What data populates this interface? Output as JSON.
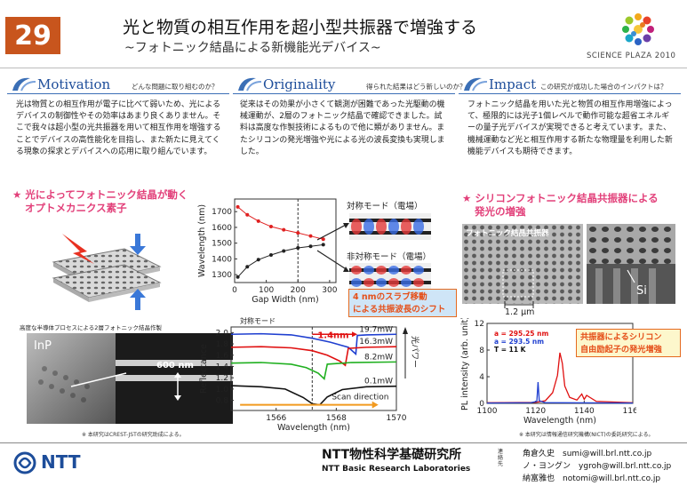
{
  "header": {
    "number": "29",
    "title": "光と物質の相互作用を超小型共振器で増強する",
    "subtitle": "~フォトニック結晶による新機能光デバイス~",
    "logo_text": "SCIENCE PLAZA 2010"
  },
  "sections": [
    {
      "name": "Motivation",
      "question": "どんな問題に取り組むのか？",
      "body": "光は物質との相互作用が電子に比べて弱いため、光によるデバイスの制御性やその効率はあまり良くありません。そこで我々は超小型の光共振器を用いて相互作用を増強することでデバイスの高性能化を目指し、また新たに見えてくる現象の探求とデバイスへの応用に取り組んでいます。"
    },
    {
      "name": "Originality",
      "question": "得られた結果はどう新しいのか？",
      "body": "従来はその効果が小さくて観測が困難であった光駆動の機械運動が、2層のフォトニック結晶で確認できました。試料は高度な作製技術によるもので他に類がありません。またシリコンの発光増強や光による光の波長変換も実現しました。"
    },
    {
      "name": "Impact",
      "question": "この研究が成功した場合のインパクトは？",
      "body": "フォトニック結晶を用いた光と物質の相互作用増強によって、極限的には光子1個レベルで動作可能な超省エネルギーの量子光デバイスが実現できると考えています。また、機械運動など光と相互作用する新たな物理量を利用した新機能デバイスも期待できます。"
    }
  ],
  "left_feature": {
    "title_line1": "★ 光によってフォトニック結晶が動く",
    "title_line2": "オプトメカニクス素子",
    "fab_caption": "高度な半導体プロセスによる2層フォトニック結晶作製",
    "inp_label": "InP",
    "gap_label": "600 nm",
    "note": "※ 本研究はCREST-JSTの研究助成による。"
  },
  "chart_wavelength": {
    "mode_sym": "対称モード（電場）",
    "mode_asym": "非対称モード（電場）",
    "callout_line1": "4 nmのスラブ移動",
    "callout_line2": "による共振波長のシフト"
  },
  "chart_reflectance": {
    "top_label": "対称モード",
    "shift_label": "1.4nm",
    "power_label": "光パワー",
    "scan_label": "Scan direction"
  },
  "right_feature": {
    "title_line1": "★ シリコンフォトニック結晶共振器による",
    "title_line2": "発光の増強",
    "sem_label": "フォトニック結晶共振器",
    "si_label": "Si",
    "scale_label": "1.2 μm",
    "legend_a1": "a = 295.25 nm",
    "legend_a2": "a = 293.5 nm",
    "legend_t": "T = 11 K",
    "callout_line1": "共振器によるシリコン",
    "callout_line2": "自由励起子の発光増強",
    "note": "※ 本研究は情報通信研究機構(NICT)の委託研究による。"
  },
  "footer": {
    "company": "NTT",
    "lab_ja": "NTT物性科学基礎研究所",
    "lab_en": "NTT Basic Research Laboratories",
    "contact_label": "連絡先",
    "contacts": [
      {
        "name": "角倉久史",
        "email": "sumi@will.brl.ntt.co.jp"
      },
      {
        "name": "ノ・ヨングン",
        "email": "ygroh@will.brl.ntt.co.jp"
      },
      {
        "name": "納富雅也",
        "email": "notomi@will.brl.ntt.co.jp"
      }
    ]
  },
  "chart_data": [
    {
      "type": "line",
      "xlabel": "Gap Width (nm)",
      "ylabel": "Wavelength (nm)",
      "xlim": [
        0,
        320
      ],
      "ylim": [
        1250,
        1780
      ],
      "xticks": [
        0,
        100,
        200,
        300
      ],
      "yticks": [
        1300,
        1400,
        1500,
        1600,
        1700
      ],
      "series": [
        {
          "name": "対称モード（電場）",
          "color": "#e02020",
          "x": [
            10,
            40,
            75,
            115,
            155,
            200,
            240,
            280
          ],
          "y": [
            1730,
            1680,
            1640,
            1605,
            1585,
            1565,
            1545,
            1525
          ]
        },
        {
          "name": "非対称モード（電場）",
          "color": "#222222",
          "x": [
            10,
            40,
            75,
            115,
            155,
            200,
            240,
            280
          ],
          "y": [
            1285,
            1350,
            1395,
            1425,
            1450,
            1470,
            1480,
            1490
          ]
        }
      ],
      "marker_x": 200
    },
    {
      "type": "line",
      "xlabel": "Wavelength (nm)",
      "ylabel": "Reflectance",
      "xlim": [
        1564.5,
        1570
      ],
      "ylim": [
        0.62,
        2.1
      ],
      "xticks": [
        1566,
        1568,
        1570
      ],
      "yticks": [
        0.8,
        1.0,
        1.2,
        1.4,
        1.6,
        1.8,
        2.0
      ],
      "series": [
        {
          "name": "19.7mW",
          "color": "#1f3fd0",
          "x": [
            1564.5,
            1565.5,
            1566.5,
            1567.2,
            1567.8,
            1568.4,
            1568.65,
            1568.7,
            1569.0,
            1570
          ],
          "y": [
            1.97,
            1.98,
            1.96,
            1.9,
            1.83,
            1.74,
            1.62,
            1.95,
            1.96,
            1.97
          ]
        },
        {
          "name": "16.3mW",
          "color": "#e01010",
          "x": [
            1564.5,
            1565.5,
            1566.5,
            1567.2,
            1567.7,
            1568.1,
            1568.3,
            1568.4,
            1569.0,
            1570
          ],
          "y": [
            1.74,
            1.75,
            1.73,
            1.68,
            1.6,
            1.5,
            1.42,
            1.72,
            1.74,
            1.75
          ]
        },
        {
          "name": "8.2mW",
          "color": "#20b020",
          "x": [
            1564.5,
            1565.5,
            1566.5,
            1567.0,
            1567.4,
            1567.6,
            1567.7,
            1568.5,
            1570
          ],
          "y": [
            1.46,
            1.47,
            1.44,
            1.38,
            1.28,
            1.18,
            1.44,
            1.47,
            1.48
          ]
        },
        {
          "name": "0.1mW",
          "color": "#111111",
          "x": [
            1564.5,
            1565.5,
            1566.3,
            1566.9,
            1567.2,
            1567.45,
            1567.7,
            1568.2,
            1569,
            1570
          ],
          "y": [
            1.06,
            1.04,
            1.0,
            0.85,
            0.74,
            0.72,
            0.86,
            0.99,
            1.04,
            1.05
          ]
        }
      ],
      "marker_x": 1567.2
    },
    {
      "type": "line",
      "xlabel": "Wavelength (nm)",
      "ylabel": "PL intensity (arb. unit)",
      "xlim": [
        1100,
        1160
      ],
      "ylim": [
        0,
        12
      ],
      "xticks": [
        1100,
        1120,
        1140,
        1160
      ],
      "yticks": [
        0,
        4,
        8,
        12
      ],
      "series": [
        {
          "name": "a = 295.25 nm",
          "color": "#e01010",
          "x": [
            1100,
            1120,
            1124,
            1127,
            1129,
            1130,
            1131,
            1132,
            1134,
            1137,
            1139,
            1140,
            1141,
            1145,
            1160
          ],
          "y": [
            0.1,
            0.15,
            0.4,
            1.6,
            4.2,
            7.6,
            6.0,
            2.6,
            0.9,
            0.5,
            1.4,
            0.6,
            1.2,
            0.3,
            0.1
          ]
        },
        {
          "name": "a = 293.5 nm",
          "color": "#1f3fd0",
          "x": [
            1100,
            1118,
            1120.5,
            1121,
            1121.5,
            1124,
            1160
          ],
          "y": [
            0.05,
            0.1,
            0.3,
            3.2,
            0.4,
            0.1,
            0.05
          ]
        }
      ],
      "annotation": "T = 11 K"
    }
  ]
}
